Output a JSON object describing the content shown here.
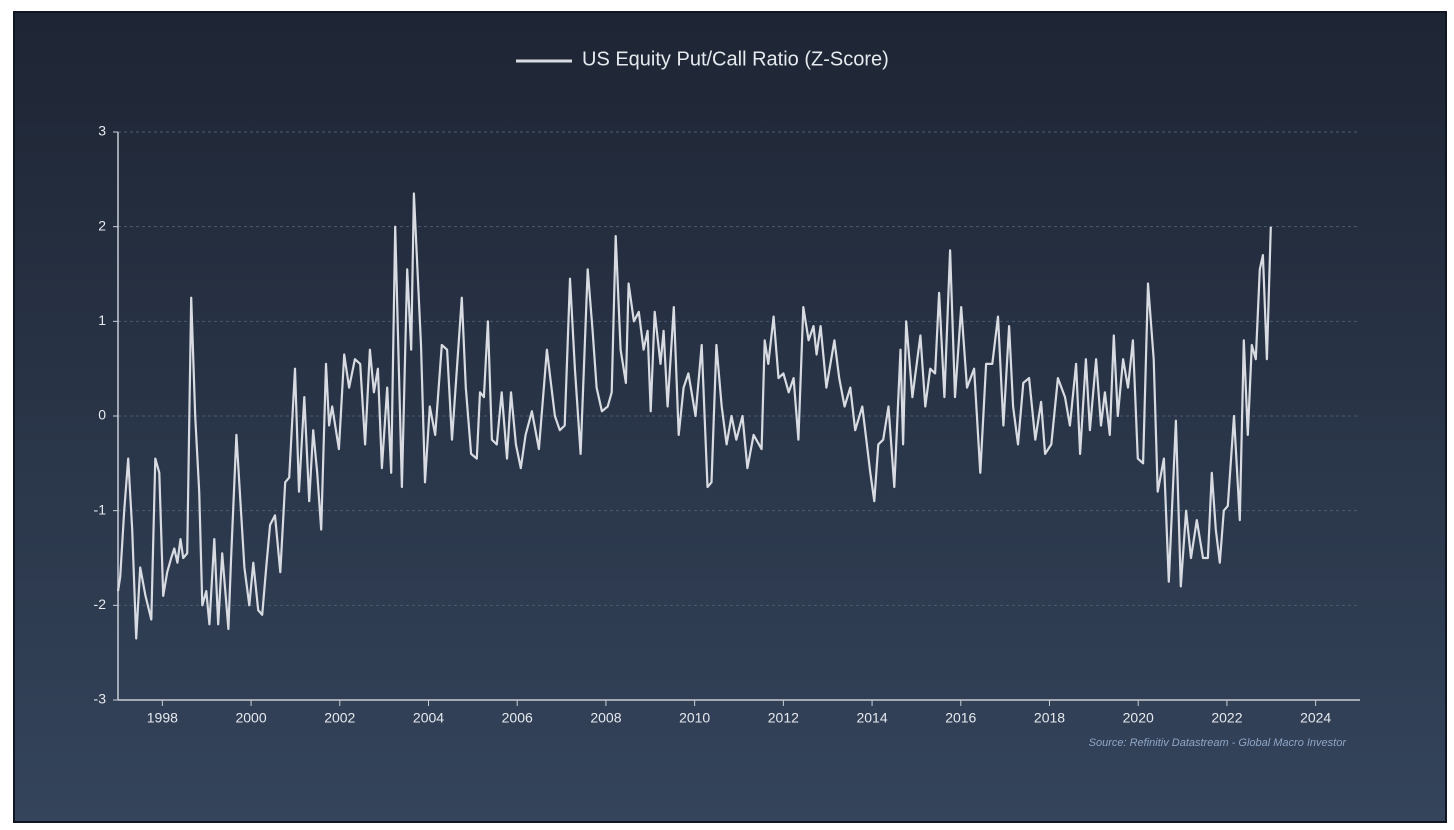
{
  "chart_data": {
    "type": "line",
    "source": "Source: Refinitiv Datastream - Global Macro Investor",
    "x": [
      1997.0,
      1997.05,
      1997.14,
      1997.23,
      1997.32,
      1997.41,
      1997.5,
      1997.62,
      1997.75,
      1997.84,
      1997.93,
      1998.02,
      1998.11,
      1998.2,
      1998.27,
      1998.34,
      1998.41,
      1998.47,
      1998.56,
      1998.65,
      1998.74,
      1998.83,
      1998.9,
      1998.99,
      1999.06,
      1999.17,
      1999.26,
      1999.35,
      1999.49,
      1999.55,
      1999.67,
      1999.76,
      1999.85,
      1999.96,
      2000.05,
      2000.16,
      2000.25,
      2000.34,
      2000.43,
      2000.54,
      2000.66,
      2000.77,
      2000.86,
      2000.99,
      2001.08,
      2001.2,
      2001.31,
      2001.4,
      2001.49,
      2001.58,
      2001.69,
      2001.76,
      2001.83,
      2001.98,
      2002.1,
      2002.21,
      2002.34,
      2002.46,
      2002.57,
      2002.68,
      2002.77,
      2002.86,
      2002.95,
      2003.07,
      2003.16,
      2003.25,
      2003.4,
      2003.52,
      2003.61,
      2003.67,
      2003.83,
      2003.92,
      2004.03,
      2004.15,
      2004.3,
      2004.42,
      2004.53,
      2004.75,
      2004.84,
      2004.96,
      2005.09,
      2005.16,
      2005.25,
      2005.34,
      2005.43,
      2005.54,
      2005.65,
      2005.77,
      2005.86,
      2005.97,
      2006.08,
      2006.19,
      2006.33,
      2006.49,
      2006.67,
      2006.76,
      2006.85,
      2006.96,
      2007.07,
      2007.19,
      2007.3,
      2007.43,
      2007.59,
      2007.7,
      2007.79,
      2007.91,
      2008.04,
      2008.13,
      2008.22,
      2008.33,
      2008.45,
      2008.51,
      2008.63,
      2008.74,
      2008.85,
      2008.94,
      2009.01,
      2009.1,
      2009.23,
      2009.3,
      2009.39,
      2009.53,
      2009.64,
      2009.75,
      2009.86,
      2009.95,
      2010.02,
      2010.16,
      2010.29,
      2010.38,
      2010.49,
      2010.61,
      2010.72,
      2010.83,
      2010.94,
      2011.08,
      2011.19,
      2011.33,
      2011.51,
      2011.58,
      2011.66,
      2011.78,
      2011.89,
      2012.0,
      2012.12,
      2012.23,
      2012.34,
      2012.45,
      2012.57,
      2012.68,
      2012.75,
      2012.84,
      2012.97,
      2013.15,
      2013.26,
      2013.38,
      2013.51,
      2013.62,
      2013.78,
      2013.96,
      2014.05,
      2014.14,
      2014.25,
      2014.37,
      2014.5,
      2014.64,
      2014.7,
      2014.77,
      2014.91,
      2015.09,
      2015.2,
      2015.31,
      2015.42,
      2015.51,
      2015.63,
      2015.76,
      2015.87,
      2016.01,
      2016.14,
      2016.3,
      2016.44,
      2016.57,
      2016.71,
      2016.84,
      2016.96,
      2017.09,
      2017.18,
      2017.29,
      2017.41,
      2017.54,
      2017.68,
      2017.81,
      2017.9,
      2018.04,
      2018.19,
      2018.35,
      2018.46,
      2018.6,
      2018.69,
      2018.82,
      2018.91,
      2019.05,
      2019.16,
      2019.25,
      2019.36,
      2019.45,
      2019.54,
      2019.66,
      2019.77,
      2019.88,
      2019.99,
      2020.11,
      2020.22,
      2020.35,
      2020.44,
      2020.58,
      2020.69,
      2020.85,
      2020.96,
      2021.08,
      2021.19,
      2021.32,
      2021.46,
      2021.57,
      2021.66,
      2021.75,
      2021.84,
      2021.93,
      2022.02,
      2022.16,
      2022.29,
      2022.38,
      2022.47,
      2022.56,
      2022.65,
      2022.74,
      2022.81,
      2022.9,
      2022.99
    ],
    "series": [
      {
        "name": "US Equity Put/Call Ratio (Z-Score)",
        "color": "#d8dce2",
        "values": [
          -1.85,
          -1.7,
          -1.0,
          -0.45,
          -1.2,
          -2.35,
          -1.6,
          -1.9,
          -2.15,
          -0.45,
          -0.6,
          -1.9,
          -1.65,
          -1.5,
          -1.4,
          -1.55,
          -1.3,
          -1.5,
          -1.45,
          1.25,
          0.0,
          -0.8,
          -2.0,
          -1.85,
          -2.2,
          -1.3,
          -2.2,
          -1.45,
          -2.25,
          -1.5,
          -0.2,
          -0.9,
          -1.6,
          -2.0,
          -1.55,
          -2.05,
          -2.1,
          -1.6,
          -1.15,
          -1.05,
          -1.65,
          -0.7,
          -0.65,
          0.5,
          -0.8,
          0.2,
          -0.9,
          -0.15,
          -0.6,
          -1.2,
          0.55,
          -0.1,
          0.1,
          -0.35,
          0.65,
          0.3,
          0.6,
          0.55,
          -0.3,
          0.7,
          0.25,
          0.5,
          -0.55,
          0.3,
          -0.6,
          2.0,
          -0.75,
          1.55,
          0.7,
          2.35,
          0.75,
          -0.7,
          0.1,
          -0.2,
          0.75,
          0.7,
          -0.25,
          1.25,
          0.3,
          -0.4,
          -0.45,
          0.25,
          0.2,
          1.0,
          -0.25,
          -0.3,
          0.25,
          -0.45,
          0.25,
          -0.3,
          -0.55,
          -0.2,
          0.05,
          -0.35,
          0.7,
          0.35,
          0.0,
          -0.15,
          -0.1,
          1.45,
          0.5,
          -0.4,
          1.55,
          0.9,
          0.3,
          0.05,
          0.1,
          0.25,
          1.9,
          0.7,
          0.35,
          1.4,
          1.0,
          1.1,
          0.7,
          0.9,
          0.05,
          1.1,
          0.55,
          0.9,
          0.1,
          1.15,
          -0.2,
          0.3,
          0.45,
          0.2,
          0.0,
          0.75,
          -0.75,
          -0.7,
          0.75,
          0.1,
          -0.3,
          0.0,
          -0.25,
          0.0,
          -0.55,
          -0.2,
          -0.35,
          0.8,
          0.55,
          1.05,
          0.4,
          0.45,
          0.25,
          0.4,
          -0.25,
          1.15,
          0.8,
          0.95,
          0.65,
          0.95,
          0.3,
          0.8,
          0.4,
          0.1,
          0.3,
          -0.15,
          0.1,
          -0.6,
          -0.9,
          -0.3,
          -0.25,
          0.1,
          -0.75,
          0.7,
          -0.3,
          1.0,
          0.2,
          0.85,
          0.1,
          0.5,
          0.45,
          1.3,
          0.2,
          1.75,
          0.2,
          1.15,
          0.3,
          0.5,
          -0.6,
          0.55,
          0.55,
          1.05,
          -0.1,
          0.95,
          0.1,
          -0.3,
          0.35,
          0.4,
          -0.25,
          0.15,
          -0.4,
          -0.3,
          0.4,
          0.2,
          -0.1,
          0.55,
          -0.4,
          0.6,
          -0.15,
          0.6,
          -0.1,
          0.25,
          -0.2,
          0.85,
          0.0,
          0.6,
          0.3,
          0.8,
          -0.45,
          -0.5,
          1.4,
          0.6,
          -0.8,
          -0.45,
          -1.75,
          -0.05,
          -1.8,
          -1.0,
          -1.5,
          -1.1,
          -1.5,
          -1.5,
          -0.6,
          -1.2,
          -1.55,
          -1.0,
          -0.95,
          0.0,
          -1.1,
          0.8,
          -0.2,
          0.75,
          0.6,
          1.55,
          1.7,
          0.6,
          2.0
        ]
      }
    ],
    "xlim": [
      1997,
      2025
    ],
    "xticks": [
      1998,
      2000,
      2002,
      2004,
      2006,
      2008,
      2010,
      2012,
      2014,
      2016,
      2018,
      2020,
      2022,
      2024
    ],
    "ylim": [
      -3,
      3
    ],
    "yticks": [
      -3,
      -2,
      -1,
      0,
      1,
      2,
      3
    ],
    "grid": true,
    "legend": "top"
  }
}
